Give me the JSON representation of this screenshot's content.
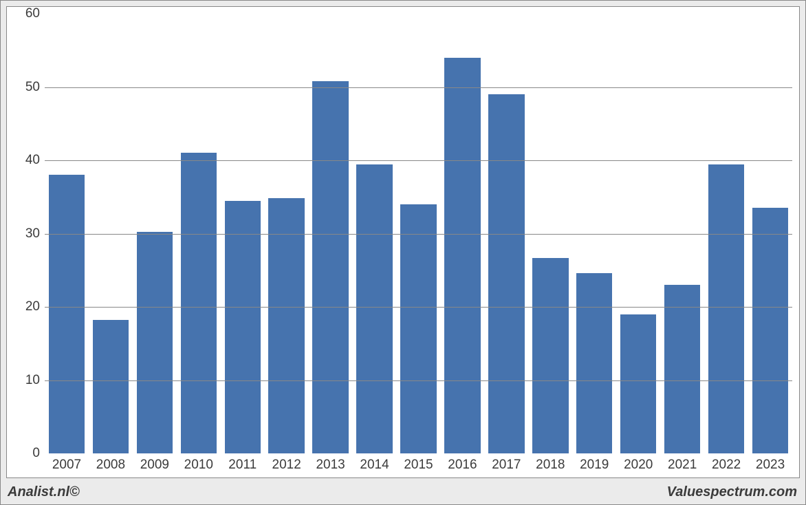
{
  "chart": {
    "type": "bar",
    "categories": [
      "2007",
      "2008",
      "2009",
      "2010",
      "2011",
      "2012",
      "2013",
      "2014",
      "2015",
      "2016",
      "2017",
      "2018",
      "2019",
      "2020",
      "2021",
      "2022",
      "2023"
    ],
    "values": [
      38,
      18.2,
      30.2,
      41,
      34.5,
      34.8,
      50.8,
      39.4,
      34,
      54,
      49,
      26.7,
      24.6,
      19,
      23,
      39.4,
      33.5
    ],
    "bar_color": "#4673ae",
    "bar_width_ratio": 0.82,
    "ylim": [
      0,
      60
    ],
    "ytick_step": 10,
    "yticks": [
      0,
      10,
      20,
      30,
      40,
      50,
      60
    ],
    "grid_color": "#888888",
    "background_color": "#ffffff",
    "outer_background_color": "#ebebeb",
    "border_color": "#888888",
    "axis_font_size": 19,
    "axis_font_color": "#3b3b3b"
  },
  "footer": {
    "left_text": "Analist.nl©",
    "right_text": "Valuespectrum.com",
    "font_size": 20,
    "font_color": "#3b3b3b"
  }
}
